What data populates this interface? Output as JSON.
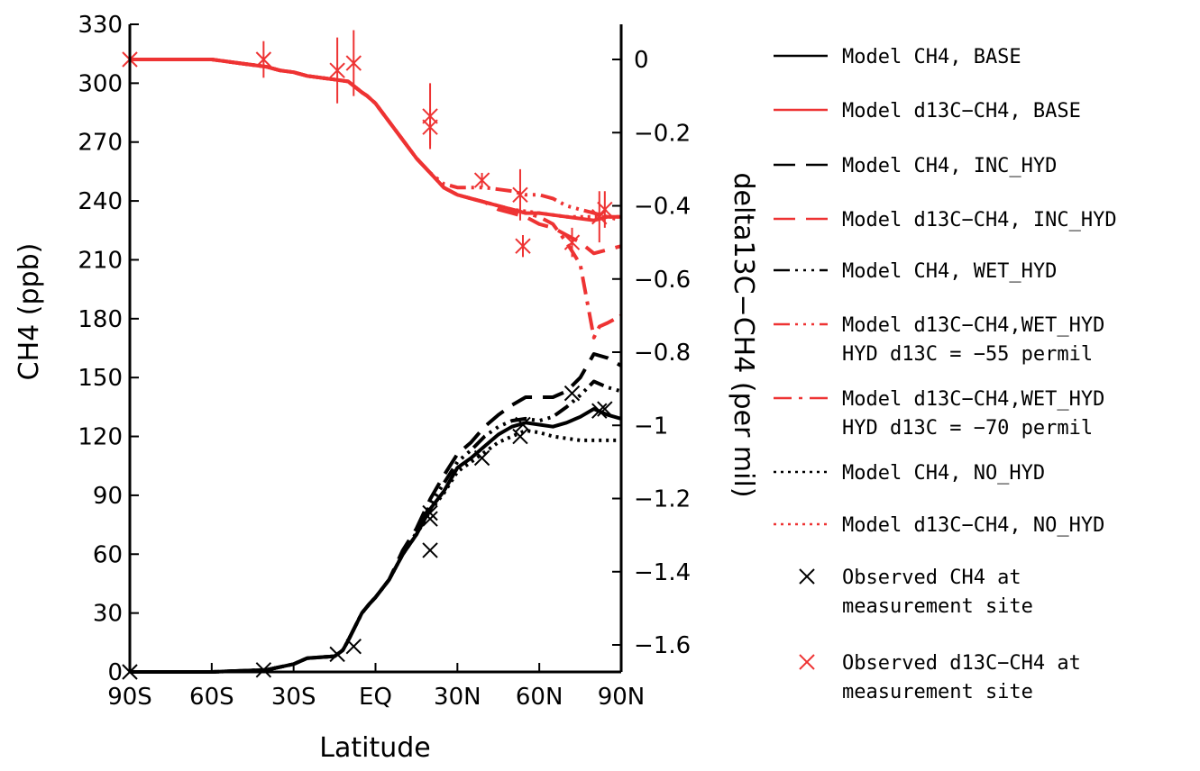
{
  "chart_data": {
    "type": "line",
    "xlabel": "Latitude",
    "ylabel_left": "CH4  (ppb)",
    "ylabel_right": "delta13C−CH4  (per mil)",
    "x_ticks": [
      {
        "v": -90,
        "label": "90S"
      },
      {
        "v": -60,
        "label": "60S"
      },
      {
        "v": -30,
        "label": "30S"
      },
      {
        "v": 0,
        "label": "EQ"
      },
      {
        "v": 30,
        "label": "30N"
      },
      {
        "v": 60,
        "label": "60N"
      },
      {
        "v": 90,
        "label": "90N"
      }
    ],
    "xlim": [
      -90,
      90
    ],
    "ylim_left": [
      0,
      330
    ],
    "y_ticks_left": [
      "0",
      "30",
      "60",
      "90",
      "120",
      "150",
      "180",
      "210",
      "240",
      "270",
      "300",
      "330"
    ],
    "ylim_right": [
      -1.7,
      0.06
    ],
    "y_ticks_right": [
      {
        "v": 0,
        "label": "0"
      },
      {
        "v": -0.2,
        "label": "−0.2"
      },
      {
        "v": -0.4,
        "label": "−0.4"
      },
      {
        "v": -0.6,
        "label": "−0.6"
      },
      {
        "v": -0.8,
        "label": "−0.8"
      },
      {
        "v": -1.0,
        "label": "−1"
      },
      {
        "v": -1.2,
        "label": "−1.2"
      },
      {
        "v": -1.4,
        "label": "−1.4"
      },
      {
        "v": -1.6,
        "label": "−1.6"
      }
    ],
    "series": [
      {
        "name": "Model CH4, BASE",
        "axis": "left",
        "color": "#000000",
        "dash": "",
        "x": [
          -90,
          -60,
          -40,
          -30,
          -25,
          -15,
          -12,
          -10,
          -5,
          -2,
          0,
          5,
          10,
          15,
          20,
          25,
          30,
          35,
          40,
          45,
          50,
          55,
          60,
          65,
          70,
          75,
          80,
          85,
          90
        ],
        "y": [
          0,
          0,
          1,
          4,
          7,
          8,
          11,
          16,
          30,
          35,
          38,
          47,
          60,
          70,
          83,
          92,
          104,
          109,
          115,
          121,
          125,
          127,
          126,
          125,
          127,
          130,
          134,
          131,
          129
        ]
      },
      {
        "name": "Model d13C−CH4, BASE",
        "axis": "right",
        "color": "#ee3333",
        "dash": "",
        "x": [
          -90,
          -70,
          -60,
          -50,
          -40,
          -35,
          -30,
          -25,
          -20,
          -15,
          -10,
          -5,
          -3,
          0,
          5,
          10,
          15,
          20,
          25,
          30,
          35,
          40,
          45,
          50,
          55,
          60,
          65,
          70,
          75,
          80,
          85,
          90
        ],
        "y": [
          0,
          0,
          0,
          -0.01,
          -0.02,
          -0.03,
          -0.035,
          -0.045,
          -0.05,
          -0.055,
          -0.06,
          -0.09,
          -0.1,
          -0.12,
          -0.17,
          -0.22,
          -0.27,
          -0.31,
          -0.35,
          -0.37,
          -0.38,
          -0.39,
          -0.4,
          -0.41,
          -0.42,
          -0.42,
          -0.425,
          -0.43,
          -0.435,
          -0.44,
          -0.43,
          -0.43
        ]
      },
      {
        "name": "Model CH4, INC_HYD",
        "axis": "left",
        "color": "#000000",
        "dash": "24,12",
        "x": [
          -90,
          -60,
          -40,
          -30,
          -25,
          -15,
          -12,
          -10,
          -5,
          -2,
          0,
          5,
          10,
          15,
          20,
          25,
          30,
          35,
          40,
          45,
          50,
          55,
          60,
          65,
          70,
          75,
          80,
          85,
          90
        ],
        "y": [
          0,
          0,
          1,
          4,
          7,
          8,
          11,
          16,
          30,
          35,
          38,
          47,
          62,
          73,
          88,
          100,
          111,
          117,
          125,
          131,
          136,
          140,
          140,
          140,
          143,
          150,
          162,
          160,
          156
        ]
      },
      {
        "name": "Model d13C−CH4, INC_HYD",
        "axis": "right",
        "color": "#ee3333",
        "dash": "24,12",
        "x": [
          -90,
          -70,
          -60,
          -50,
          -40,
          -35,
          -30,
          -25,
          -20,
          -15,
          -10,
          -5,
          -3,
          0,
          5,
          10,
          15,
          20,
          25,
          30,
          35,
          40,
          45,
          50,
          55,
          60,
          65,
          70,
          75,
          80,
          85,
          90
        ],
        "y": [
          0,
          0,
          0,
          -0.01,
          -0.02,
          -0.03,
          -0.035,
          -0.045,
          -0.05,
          -0.055,
          -0.06,
          -0.09,
          -0.1,
          -0.12,
          -0.17,
          -0.22,
          -0.27,
          -0.31,
          -0.35,
          -0.37,
          -0.38,
          -0.39,
          -0.41,
          -0.42,
          -0.43,
          -0.45,
          -0.46,
          -0.48,
          -0.5,
          -0.53,
          -0.52,
          -0.51
        ]
      },
      {
        "name": "Model CH4, WET_HYD",
        "axis": "left",
        "color": "#000000",
        "dash": "18,6,3,6,3,6,3,6",
        "x": [
          -90,
          -60,
          -40,
          -30,
          -25,
          -15,
          -12,
          -10,
          -5,
          -2,
          0,
          5,
          10,
          15,
          20,
          25,
          30,
          35,
          40,
          45,
          50,
          55,
          60,
          65,
          70,
          75,
          80,
          85,
          90
        ],
        "y": [
          0,
          0,
          1,
          4,
          7,
          8,
          11,
          16,
          30,
          35,
          38,
          47,
          60,
          71,
          85,
          96,
          107,
          113,
          120,
          125,
          128,
          129,
          128,
          130,
          135,
          141,
          148,
          145,
          143
        ]
      },
      {
        "name": "Model d13C−CH4,WET_HYD HYD d13C = −55 permil",
        "axis": "right",
        "color": "#ee3333",
        "dash": "18,6,3,6,3,6,3,6",
        "x": [
          -90,
          -70,
          -60,
          -50,
          -40,
          -35,
          -30,
          -25,
          -20,
          -15,
          -10,
          -5,
          -3,
          0,
          5,
          10,
          15,
          20,
          25,
          30,
          35,
          40,
          45,
          50,
          55,
          60,
          65,
          70,
          75,
          80,
          85,
          90
        ],
        "y": [
          0,
          0,
          0,
          -0.01,
          -0.02,
          -0.03,
          -0.035,
          -0.045,
          -0.05,
          -0.055,
          -0.06,
          -0.09,
          -0.1,
          -0.12,
          -0.17,
          -0.22,
          -0.27,
          -0.31,
          -0.34,
          -0.35,
          -0.35,
          -0.35,
          -0.355,
          -0.36,
          -0.37,
          -0.37,
          -0.38,
          -0.4,
          -0.41,
          -0.42,
          -0.43,
          -0.44
        ]
      },
      {
        "name": "Model d13C−CH4,WET_HYD HYD d13C = −70 permil",
        "axis": "right",
        "color": "#ee3333",
        "dash": "20,8,4,8",
        "x": [
          -90,
          -70,
          -60,
          -50,
          -40,
          -35,
          -30,
          -25,
          -20,
          -15,
          -10,
          -5,
          -3,
          0,
          5,
          10,
          15,
          20,
          25,
          30,
          35,
          40,
          45,
          50,
          55,
          60,
          65,
          70,
          75,
          80,
          82,
          85,
          90
        ],
        "y": [
          0,
          0,
          0,
          -0.01,
          -0.02,
          -0.03,
          -0.035,
          -0.045,
          -0.05,
          -0.055,
          -0.06,
          -0.09,
          -0.1,
          -0.12,
          -0.17,
          -0.22,
          -0.27,
          -0.31,
          -0.35,
          -0.37,
          -0.38,
          -0.39,
          -0.4,
          -0.41,
          -0.42,
          -0.43,
          -0.45,
          -0.5,
          -0.56,
          -0.76,
          -0.73,
          -0.72,
          -0.7
        ]
      },
      {
        "name": "Model CH4, NO_HYD",
        "axis": "left",
        "color": "#000000",
        "dash": "3,5",
        "x": [
          -90,
          -60,
          -40,
          -30,
          -25,
          -15,
          -12,
          -10,
          -5,
          -2,
          0,
          5,
          10,
          15,
          20,
          25,
          30,
          35,
          40,
          45,
          50,
          55,
          60,
          65,
          70,
          75,
          80,
          85,
          90
        ],
        "y": [
          0,
          0,
          1,
          4,
          7,
          8,
          11,
          16,
          30,
          35,
          38,
          47,
          60,
          70,
          82,
          91,
          102,
          107,
          112,
          117,
          120,
          123,
          122,
          120,
          119,
          118,
          118,
          118,
          118
        ]
      },
      {
        "name": "Model d13C−CH4, NO_HYD",
        "axis": "right",
        "color": "#ee3333",
        "dash": "3,5",
        "x": [
          -90,
          -70,
          -60,
          -50,
          -40,
          -35,
          -30,
          -25,
          -20,
          -15,
          -10,
          -5,
          -3,
          0,
          5,
          10,
          15,
          20,
          25,
          30,
          35,
          40,
          45,
          50,
          55,
          60,
          65,
          70,
          75,
          80,
          85,
          90
        ],
        "y": [
          0,
          0,
          0,
          -0.01,
          -0.02,
          -0.03,
          -0.035,
          -0.045,
          -0.05,
          -0.055,
          -0.06,
          -0.09,
          -0.1,
          -0.12,
          -0.17,
          -0.22,
          -0.27,
          -0.31,
          -0.35,
          -0.37,
          -0.38,
          -0.39,
          -0.4,
          -0.41,
          -0.415,
          -0.42,
          -0.425,
          -0.43,
          -0.43,
          -0.43,
          -0.43,
          -0.43
        ]
      }
    ],
    "observed_ch4": {
      "name": "Observed CH4 at measurement site",
      "axis": "left",
      "color": "#000000",
      "points": [
        {
          "x": -90,
          "y": 0
        },
        {
          "x": -41,
          "y": 1
        },
        {
          "x": -14,
          "y": 9
        },
        {
          "x": -8,
          "y": 13
        },
        {
          "x": 20,
          "y": 78
        },
        {
          "x": 20,
          "y": 81
        },
        {
          "x": 20,
          "y": 62
        },
        {
          "x": 39,
          "y": 109
        },
        {
          "x": 53,
          "y": 120
        },
        {
          "x": 54,
          "y": 126
        },
        {
          "x": 72,
          "y": 142
        },
        {
          "x": 82,
          "y": 133
        },
        {
          "x": 84,
          "y": 134
        }
      ]
    },
    "observed_d13c": {
      "name": "Observed d13C−CH4 at measurement site",
      "axis": "right",
      "color": "#ee3333",
      "points": [
        {
          "x": -90,
          "y": 0,
          "err": 0
        },
        {
          "x": -41,
          "y": 0,
          "err": 0.05
        },
        {
          "x": -14,
          "y": -0.03,
          "err": 0.09
        },
        {
          "x": -8,
          "y": -0.01,
          "err": 0.09
        },
        {
          "x": 20,
          "y": -0.155,
          "err": 0.09
        },
        {
          "x": 20,
          "y": -0.185,
          "err": 0.05
        },
        {
          "x": 39,
          "y": -0.33,
          "err": 0.02
        },
        {
          "x": 53,
          "y": -0.37,
          "err": 0.07
        },
        {
          "x": 54,
          "y": -0.51,
          "err": 0.03
        },
        {
          "x": 72,
          "y": -0.5,
          "err": 0.04
        },
        {
          "x": 82,
          "y": -0.43,
          "err": 0.07
        },
        {
          "x": 84,
          "y": -0.41,
          "err": 0.05
        }
      ]
    }
  },
  "legend": [
    {
      "lines": [
        "Model CH4, BASE"
      ],
      "color": "#000000",
      "dash": "",
      "kind": "line"
    },
    {
      "lines": [
        "Model d13C−CH4, BASE"
      ],
      "color": "#ee3333",
      "dash": "",
      "kind": "line"
    },
    {
      "lines": [
        "Model CH4, INC_HYD"
      ],
      "color": "#000000",
      "dash": "24,12",
      "kind": "line"
    },
    {
      "lines": [
        "Model d13C−CH4, INC_HYD"
      ],
      "color": "#ee3333",
      "dash": "24,12",
      "kind": "line"
    },
    {
      "lines": [
        "Model CH4, WET_HYD"
      ],
      "color": "#000000",
      "dash": "18,6,3,6,3,6,3,6",
      "kind": "line"
    },
    {
      "lines": [
        "Model d13C−CH4,WET_HYD",
        "HYD d13C = −55 permil"
      ],
      "color": "#ee3333",
      "dash": "18,6,3,6,3,6,3,6",
      "kind": "line"
    },
    {
      "lines": [
        "Model d13C−CH4,WET_HYD",
        "HYD d13C = −70 permil"
      ],
      "color": "#ee3333",
      "dash": "20,8,4,8",
      "kind": "line"
    },
    {
      "lines": [
        "Model CH4, NO_HYD"
      ],
      "color": "#000000",
      "dash": "3,5",
      "kind": "line"
    },
    {
      "lines": [
        "Model d13C−CH4, NO_HYD"
      ],
      "color": "#ee3333",
      "dash": "3,5",
      "kind": "line"
    },
    {
      "lines": [
        "Observed CH4 at",
        "measurement site"
      ],
      "color": "#000000",
      "dash": "",
      "kind": "cross"
    },
    {
      "lines": [
        "Observed d13C−CH4 at",
        "measurement site"
      ],
      "color": "#ee3333",
      "dash": "",
      "kind": "cross"
    }
  ]
}
